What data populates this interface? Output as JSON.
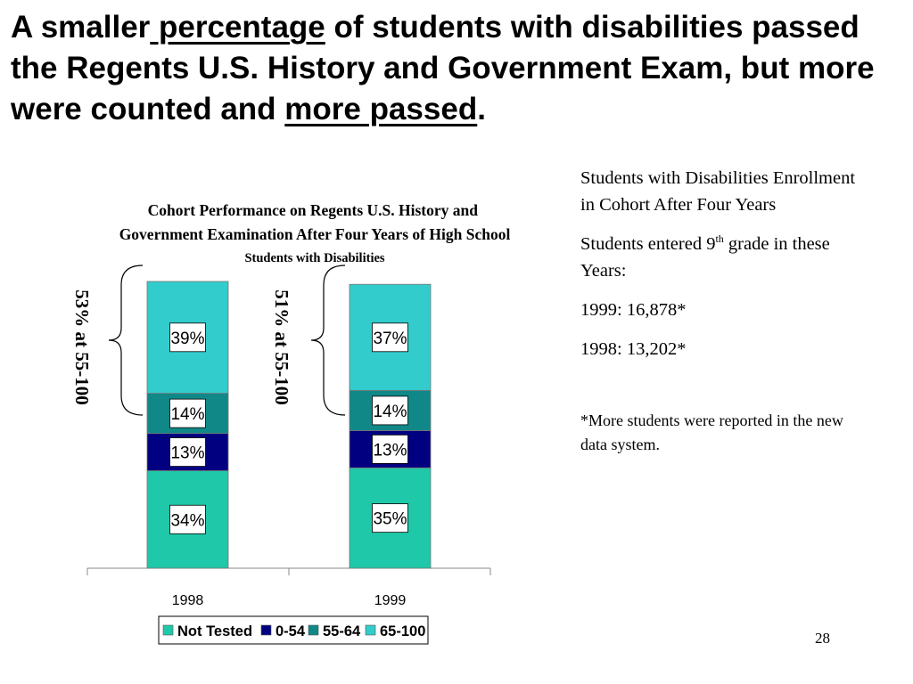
{
  "headline": {
    "part1": "A smaller",
    "part2": " percentage",
    "part3": " of students with disabilities passed the Regents U.S. History and Government Exam, but more were counted and ",
    "part4": "more passed",
    "part5": "."
  },
  "side_panel": {
    "heading": "Students with Disabilities Enrollment in Cohort After Four Years",
    "entered_prefix": "Students entered 9",
    "entered_sup": "th",
    "entered_suffix": " grade in these Years:",
    "year_1999": "1999: 16,878*",
    "year_1998": "1998: 13,202*",
    "note": "*More students were reported in the new data system."
  },
  "page_number": "28",
  "colors": {
    "not_tested": "#1ec8a8",
    "r0_54": "#000080",
    "r55_64": "#118888",
    "r65_100": "#33cccc"
  },
  "chart_data": {
    "type": "bar",
    "stacked": true,
    "title": "Cohort Performance on Regents U.S. History and Government Examination After Four Years of High School",
    "subtitle": "Students with Disabilities",
    "categories": [
      "1998",
      "1999"
    ],
    "ylim": [
      0,
      100
    ],
    "series": [
      {
        "name": "Not Tested",
        "values": [
          34,
          35
        ],
        "labels": [
          "34%",
          "35%"
        ],
        "color": "#1ec8a8"
      },
      {
        "name": "0-54",
        "values": [
          13,
          13
        ],
        "labels": [
          "13%",
          "13%"
        ],
        "color": "#000080"
      },
      {
        "name": "55-64",
        "values": [
          14,
          14
        ],
        "labels": [
          "14%",
          "14%"
        ],
        "color": "#118888"
      },
      {
        "name": "65-100",
        "values": [
          39,
          37
        ],
        "labels": [
          "39%",
          "37%"
        ],
        "color": "#33cccc"
      }
    ],
    "brace_annotations": [
      "53% at 55-100",
      "51% at 55-100"
    ],
    "legend_position": "bottom"
  }
}
